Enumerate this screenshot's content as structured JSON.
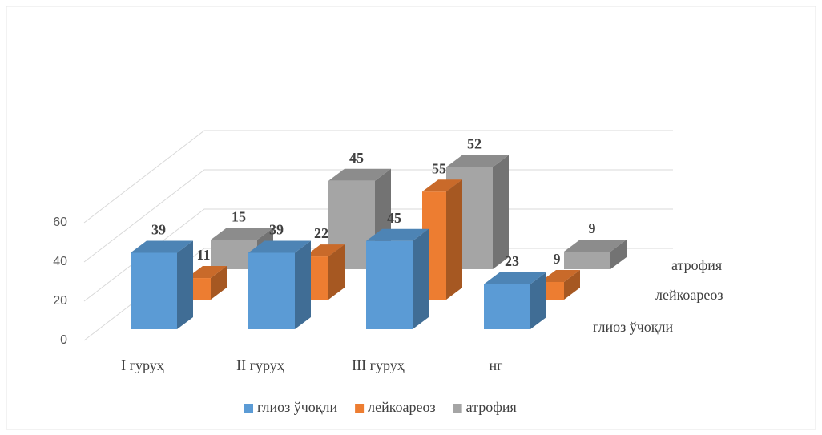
{
  "chart_data": {
    "type": "bar3d",
    "categories": [
      "I гуруҳ",
      "II гуруҳ",
      "III гуруҳ",
      "нг"
    ],
    "series": [
      {
        "name": "глиоз ўчоқли",
        "color": "#5b9bd5",
        "values": [
          39,
          39,
          45,
          23
        ]
      },
      {
        "name": "лейкоареоз",
        "color": "#ed7d31",
        "values": [
          11,
          22,
          55,
          9
        ]
      },
      {
        "name": "атрофия",
        "color": "#a5a5a5",
        "values": [
          15,
          45,
          52,
          9
        ]
      }
    ],
    "ylim": [
      0,
      60
    ],
    "yticks": [
      0,
      20,
      40,
      60
    ],
    "grid": true,
    "legend": "bottom"
  }
}
